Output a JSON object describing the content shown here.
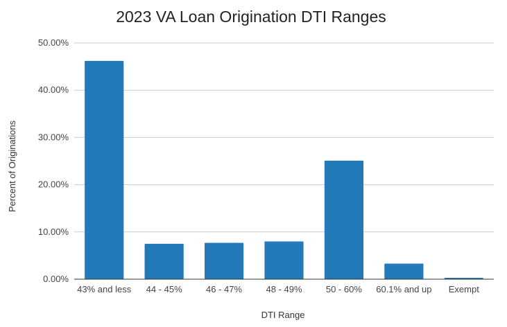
{
  "chart_data": {
    "type": "bar",
    "title": "2023 VA Loan Origination DTI Ranges",
    "xlabel": "DTI Range",
    "ylabel": "Percent of Originations",
    "categories": [
      "43% and less",
      "44 - 45%",
      "46 - 47%",
      "48 - 49%",
      "50 - 60%",
      "60.1% and up",
      "Exempt"
    ],
    "values": [
      46.2,
      7.5,
      7.7,
      8.0,
      25.1,
      3.3,
      0.3
    ],
    "ylim": [
      0,
      50
    ],
    "yticks": [
      0,
      10,
      20,
      30,
      40,
      50
    ],
    "ytick_labels": [
      "0.00%",
      "10.00%",
      "20.00%",
      "30.00%",
      "40.00%",
      "50.00%"
    ],
    "grid": true,
    "bar_color": "#2479b8",
    "gridline_color": "#cccccc"
  }
}
